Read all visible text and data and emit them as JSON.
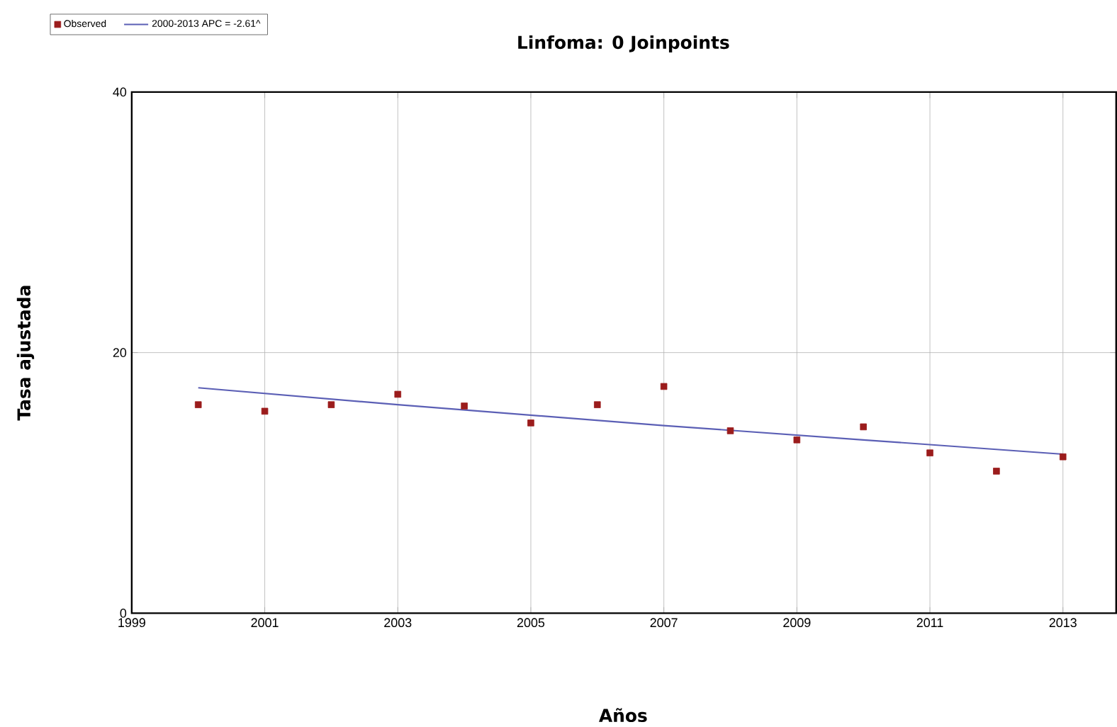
{
  "chart_data": {
    "type": "scatter",
    "title": "Linfoma: 0 Joinpoints",
    "xlabel": "Años",
    "ylabel": "Tasa ajustada",
    "xlim": [
      1999,
      2013.8
    ],
    "xticks": [
      1999,
      2001,
      2003,
      2005,
      2007,
      2009,
      2011,
      2013
    ],
    "ylim": [
      0,
      40
    ],
    "yticks": [
      0,
      20,
      40
    ],
    "grid": true,
    "legend": "top left",
    "series": [
      {
        "name": "Observed",
        "marker": "square",
        "color": "#9b1c1c",
        "x": [
          2000,
          2001,
          2002,
          2003,
          2004,
          2005,
          2006,
          2007,
          2008,
          2009,
          2010,
          2011,
          2012,
          2013
        ],
        "values": [
          16.0,
          15.5,
          16.0,
          16.8,
          15.9,
          14.6,
          16.0,
          17.4,
          14.0,
          13.3,
          14.3,
          12.3,
          10.9,
          12.0
        ]
      },
      {
        "name": "2000-2013 APC  = -2.61^",
        "type": "line",
        "marker": "none",
        "line_style": "solid",
        "color": "#5b5fb5",
        "x": [
          2000,
          2003,
          2007,
          2010,
          2013
        ],
        "values": [
          17.3,
          16.0,
          14.4,
          13.3,
          12.2
        ]
      }
    ]
  }
}
